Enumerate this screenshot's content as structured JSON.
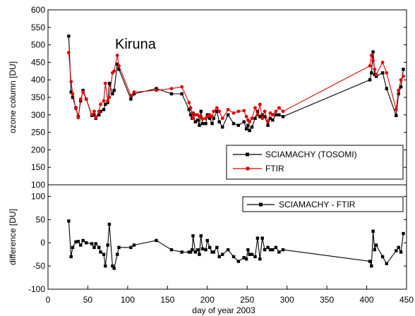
{
  "chart_data": [
    {
      "type": "line",
      "annotation": "Kiruna",
      "ylabel": "ozone column [DU]",
      "xlim": [
        0,
        450
      ],
      "ylim": [
        100,
        600
      ],
      "yticks": [
        100,
        150,
        200,
        250,
        300,
        350,
        400,
        450,
        500,
        550,
        600
      ],
      "legend_position": "bottom-right",
      "series": [
        {
          "name": "SCIAMACHY (TOSOMI)",
          "color": "#000000",
          "marker": "square",
          "x": [
            26,
            29,
            31,
            35,
            38,
            41,
            44,
            48,
            55,
            58,
            60,
            64,
            66,
            70,
            72,
            75,
            77,
            81,
            83,
            87,
            89,
            104,
            108,
            136,
            155,
            168,
            177,
            179,
            181,
            182,
            185,
            188,
            190,
            192,
            194,
            198,
            200,
            203,
            206,
            208,
            212,
            215,
            219,
            226,
            233,
            239,
            246,
            249,
            251,
            253,
            256,
            260,
            263,
            266,
            269,
            272,
            276,
            279,
            282,
            286,
            290,
            295,
            404,
            406,
            408,
            410,
            412,
            420,
            425,
            437,
            440,
            443,
            446
          ],
          "y": [
            525,
            365,
            350,
            320,
            295,
            340,
            370,
            345,
            298,
            300,
            290,
            300,
            310,
            315,
            330,
            335,
            390,
            360,
            370,
            445,
            430,
            345,
            360,
            375,
            360,
            360,
            315,
            300,
            290,
            305,
            280,
            285,
            270,
            310,
            275,
            275,
            300,
            290,
            275,
            290,
            310,
            280,
            265,
            300,
            275,
            270,
            280,
            260,
            270,
            255,
            265,
            290,
            310,
            295,
            300,
            295,
            270,
            290,
            285,
            300,
            300,
            295,
            400,
            420,
            480,
            415,
            410,
            420,
            375,
            298,
            360,
            380,
            430
          ]
        },
        {
          "name": "FTIR",
          "color": "#e00000",
          "marker": "circle",
          "x": [
            26,
            29,
            31,
            35,
            38,
            41,
            44,
            48,
            55,
            58,
            60,
            64,
            66,
            70,
            72,
            75,
            77,
            81,
            83,
            87,
            89,
            104,
            108,
            136,
            155,
            168,
            177,
            179,
            181,
            182,
            185,
            188,
            190,
            192,
            194,
            198,
            200,
            203,
            206,
            208,
            212,
            215,
            219,
            226,
            233,
            239,
            246,
            249,
            251,
            253,
            256,
            260,
            263,
            266,
            269,
            272,
            276,
            279,
            282,
            286,
            290,
            295,
            404,
            406,
            408,
            410,
            412,
            420,
            425,
            437,
            440,
            443,
            446
          ],
          "y": [
            478,
            395,
            360,
            318,
            292,
            345,
            365,
            345,
            300,
            310,
            292,
            310,
            330,
            340,
            390,
            340,
            350,
            420,
            425,
            470,
            440,
            355,
            365,
            370,
            375,
            380,
            335,
            320,
            305,
            290,
            300,
            300,
            295,
            295,
            288,
            290,
            295,
            300,
            295,
            310,
            320,
            310,
            290,
            315,
            305,
            310,
            312,
            295,
            285,
            280,
            290,
            320,
            300,
            330,
            290,
            310,
            280,
            305,
            300,
            310,
            320,
            310,
            440,
            470,
            455,
            430,
            415,
            450,
            420,
            315,
            370,
            400,
            410
          ]
        }
      ]
    },
    {
      "type": "line",
      "xlabel": "day of year 2003",
      "ylabel": "difference [DU]",
      "xlim": [
        0,
        450
      ],
      "ylim": [
        -100,
        125
      ],
      "xticks": [
        0,
        50,
        100,
        150,
        200,
        250,
        300,
        350,
        400,
        450
      ],
      "yticks": [
        -100,
        -50,
        0,
        50,
        100
      ],
      "legend_position": "top-right",
      "series": [
        {
          "name": "SCIAMACHY - FTIR",
          "color": "#000000",
          "marker": "square",
          "x": [
            26,
            29,
            31,
            35,
            38,
            41,
            44,
            48,
            55,
            58,
            60,
            64,
            66,
            70,
            72,
            75,
            77,
            81,
            83,
            87,
            89,
            104,
            108,
            136,
            155,
            168,
            177,
            179,
            181,
            182,
            185,
            188,
            190,
            192,
            194,
            198,
            200,
            203,
            206,
            208,
            212,
            215,
            219,
            226,
            233,
            239,
            246,
            249,
            251,
            253,
            256,
            260,
            263,
            266,
            269,
            272,
            276,
            279,
            282,
            286,
            290,
            295,
            404,
            406,
            408,
            410,
            412,
            420,
            425,
            437,
            440,
            443,
            446
          ],
          "y": [
            47,
            -30,
            -10,
            2,
            3,
            -5,
            5,
            0,
            -2,
            -10,
            -2,
            -10,
            -20,
            -25,
            -50,
            -5,
            40,
            -50,
            -55,
            -25,
            -10,
            -10,
            -5,
            5,
            -15,
            -20,
            -20,
            -20,
            -15,
            15,
            -20,
            -15,
            -25,
            15,
            -13,
            -15,
            5,
            -10,
            -20,
            -20,
            -10,
            -30,
            -25,
            -15,
            -30,
            -40,
            -32,
            -35,
            -15,
            -25,
            -25,
            -30,
            10,
            -35,
            10,
            -15,
            -10,
            -15,
            -15,
            -10,
            -20,
            -15,
            -40,
            -50,
            25,
            -15,
            -5,
            -30,
            -45,
            -17,
            -10,
            -20,
            20
          ]
        }
      ]
    }
  ]
}
